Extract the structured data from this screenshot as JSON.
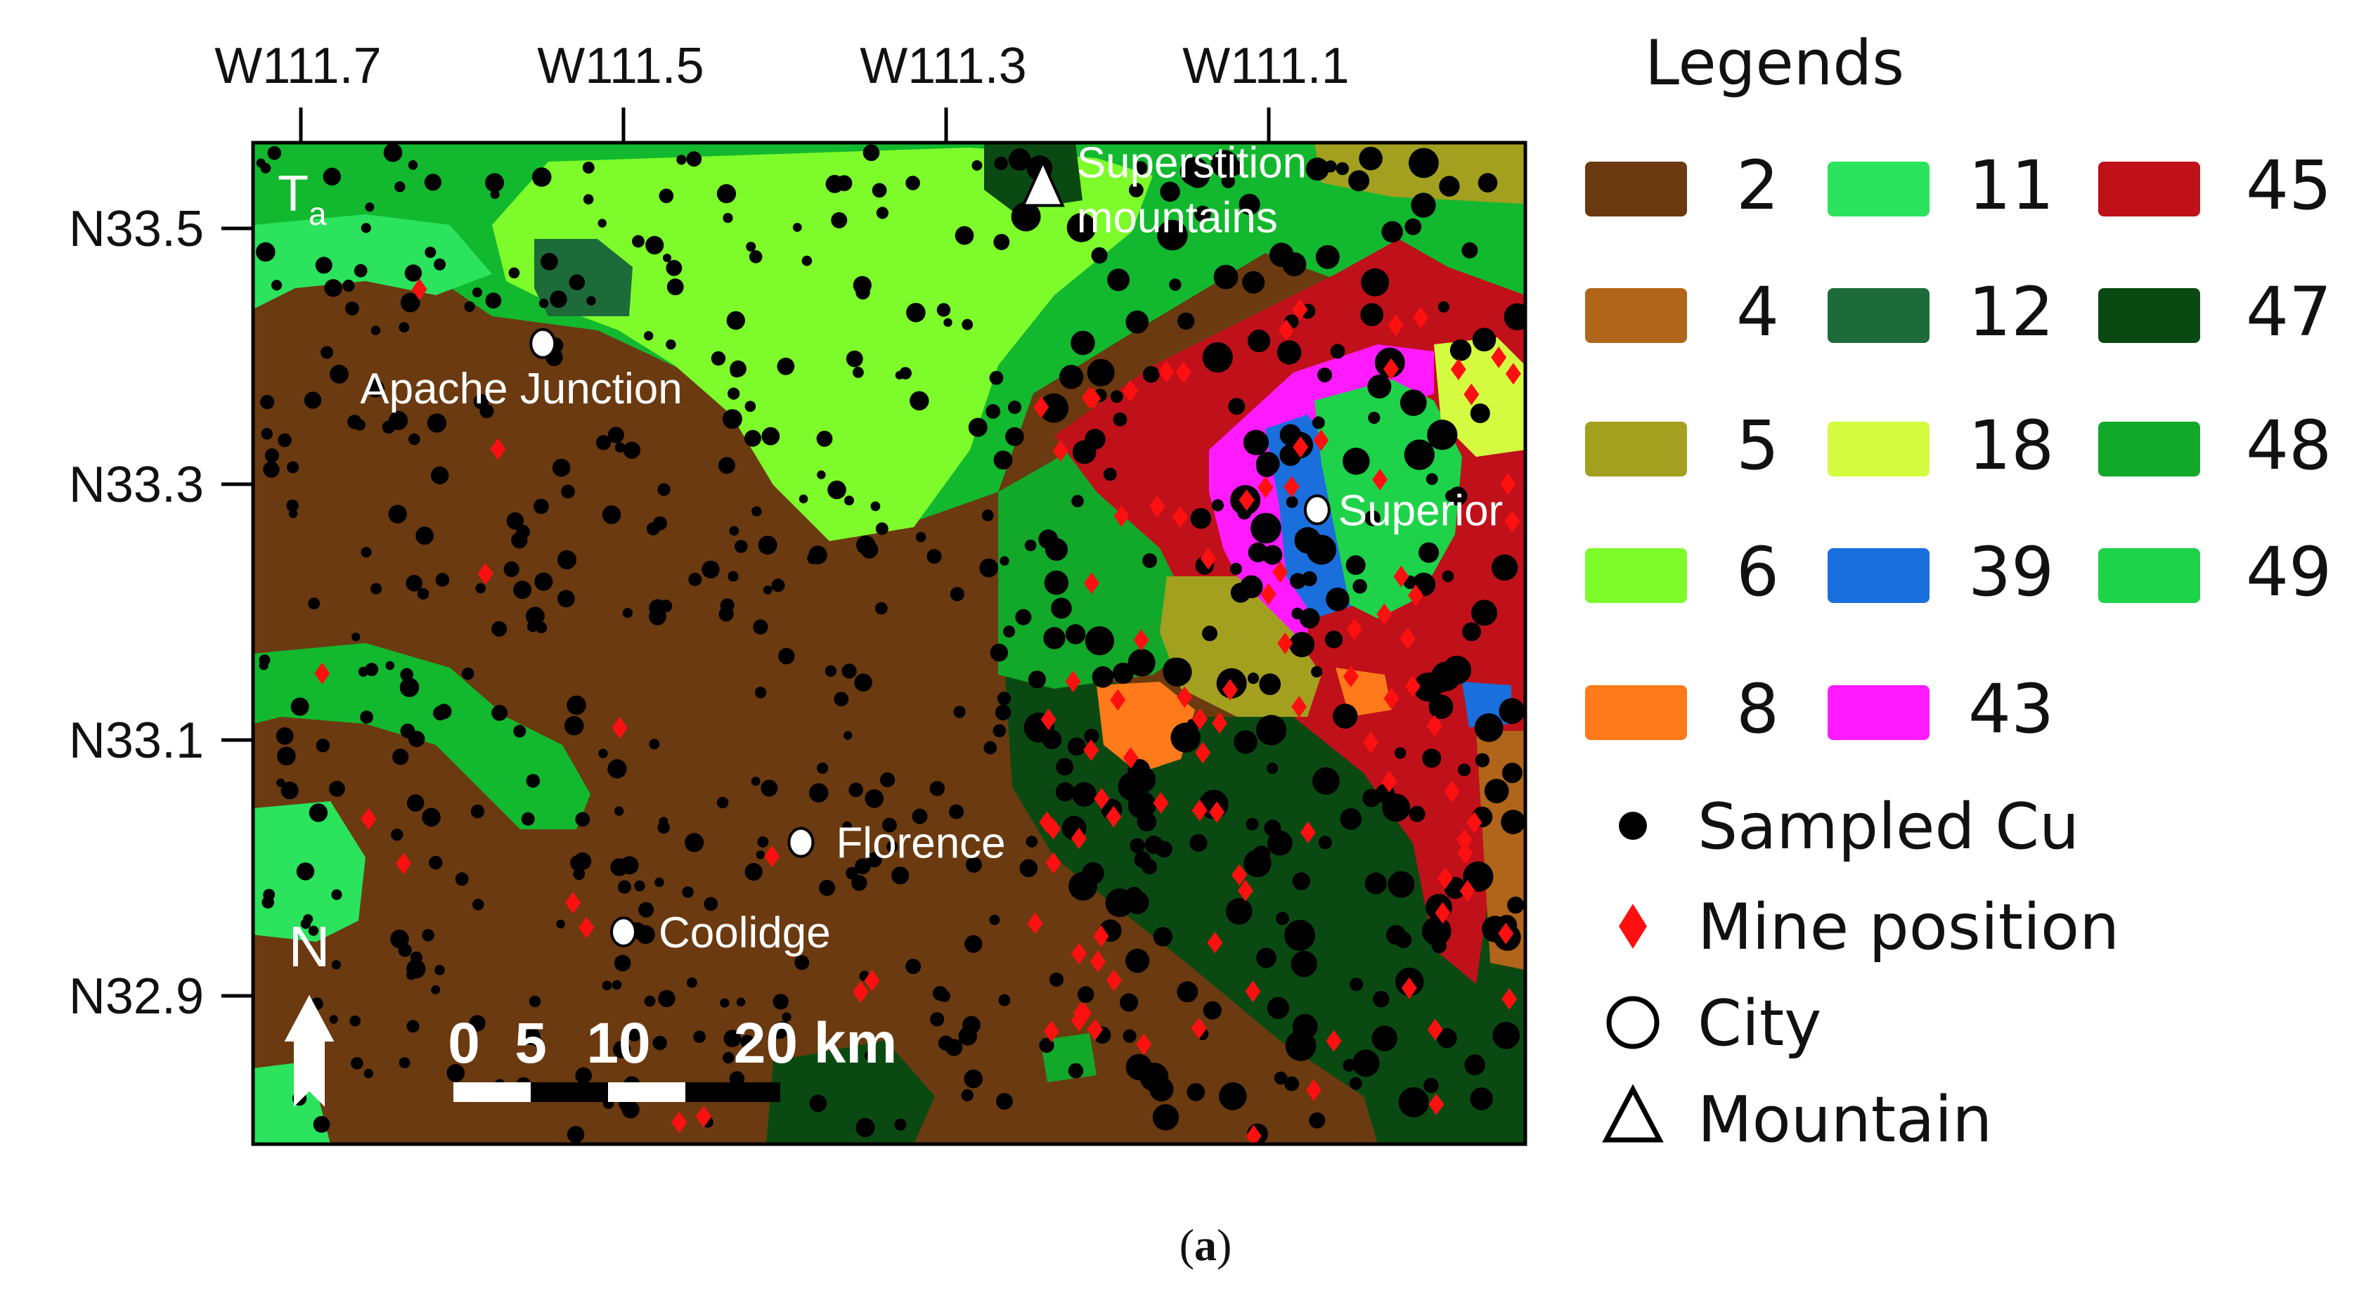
{
  "map": {
    "corner_label": "T",
    "corner_label_sub": "a",
    "longitude_ticks": [
      {
        "label": "W111.7",
        "lon": -111.7
      },
      {
        "label": "W111.5",
        "lon": -111.5
      },
      {
        "label": "W111.3",
        "lon": -111.3
      },
      {
        "label": "W111.1",
        "lon": -111.1
      }
    ],
    "latitude_ticks": [
      {
        "label": "N33.5",
        "lat": 33.5
      },
      {
        "label": "N33.3",
        "lat": 33.3
      },
      {
        "label": "N33.1",
        "lat": 33.1
      },
      {
        "label": "N32.9",
        "lat": 32.9
      }
    ],
    "cities": [
      {
        "name": "Apache Junction",
        "lon": -111.55,
        "lat": 33.41
      },
      {
        "name": "Superior",
        "lon": -111.07,
        "lat": 33.28
      },
      {
        "name": "Florence",
        "lon": -111.39,
        "lat": 33.02
      },
      {
        "name": "Coolidge",
        "lon": -111.5,
        "lat": 32.95
      }
    ],
    "mountains": [
      {
        "name_line1": "Superstition",
        "name_line2": "mountains",
        "lon": -111.24,
        "lat": 33.53
      }
    ],
    "north_arrow": "N",
    "scale_bar": {
      "labels": [
        "0",
        "5",
        "10",
        "20 km"
      ],
      "values_km": [
        0,
        5,
        10,
        20
      ]
    }
  },
  "legend": {
    "title": "Legends",
    "classes": [
      {
        "label": "2",
        "color": "#6b3a10"
      },
      {
        "label": "4",
        "color": "#b0651a"
      },
      {
        "label": "5",
        "color": "#a3a020"
      },
      {
        "label": "6",
        "color": "#7dfb2b"
      },
      {
        "label": "8",
        "color": "#ff7a1a"
      },
      {
        "label": "11",
        "color": "#2be35c"
      },
      {
        "label": "12",
        "color": "#1e6b3a"
      },
      {
        "label": "18",
        "color": "#d4fb40"
      },
      {
        "label": "39",
        "color": "#1a6fdc"
      },
      {
        "label": "43",
        "color": "#ff1aff"
      },
      {
        "label": "45",
        "color": "#c0111a"
      },
      {
        "label": "47",
        "color": "#0a4a12"
      },
      {
        "label": "48",
        "color": "#12a82a"
      },
      {
        "label": "49",
        "color": "#1ed34a"
      }
    ],
    "symbols": [
      {
        "label": "Sampled Cu",
        "icon": "filled-circle-icon"
      },
      {
        "label": "Mine position",
        "icon": "red-diamond-icon"
      },
      {
        "label": "City",
        "icon": "open-circle-icon"
      },
      {
        "label": "Mountain",
        "icon": "open-triangle-icon"
      }
    ]
  },
  "panel_letter": "a"
}
